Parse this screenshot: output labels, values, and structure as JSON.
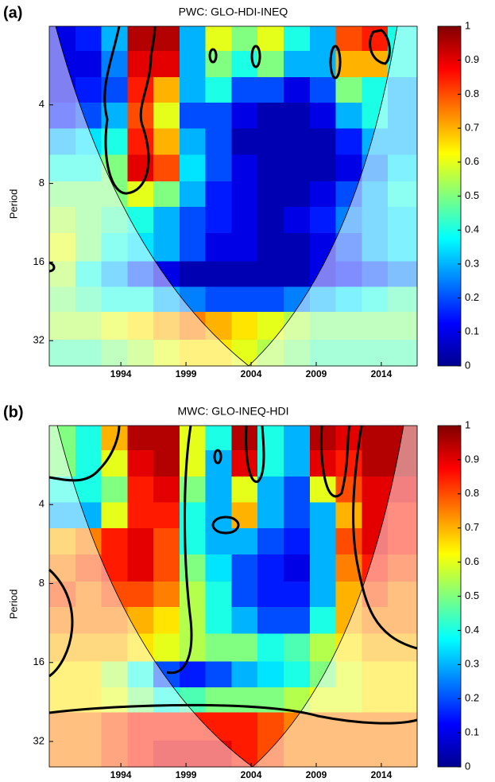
{
  "chart_data": [
    {
      "type": "heatmap",
      "panel_label": "(a)",
      "title": "PWC: GLO-HDI-INEQ",
      "ylabel": "Period",
      "x": [
        1989.5,
        1991.5,
        1993.5,
        1995.5,
        1997.5,
        1999.5,
        2001.5,
        2003.5,
        2005.5,
        2007.5,
        2009.5,
        2011.5,
        2013.5,
        2015.5
      ],
      "y": [
        2.2,
        2.8,
        3.5,
        4.4,
        5.5,
        7,
        8.8,
        11,
        14,
        18,
        22,
        28,
        36
      ],
      "z": [
        [
          0.1,
          0.15,
          0.3,
          0.95,
          0.95,
          0.3,
          0.6,
          0.5,
          0.6,
          0.4,
          0.3,
          0.8,
          0.85,
          0.4
        ],
        [
          0.1,
          0.1,
          0.25,
          0.9,
          0.9,
          0.3,
          0.5,
          0.4,
          0.5,
          0.3,
          0.3,
          0.7,
          0.7,
          0.4
        ],
        [
          0.1,
          0.15,
          0.2,
          0.85,
          0.7,
          0.3,
          0.4,
          0.2,
          0.2,
          0.1,
          0.2,
          0.5,
          0.4,
          0.3
        ],
        [
          0.15,
          0.2,
          0.3,
          0.8,
          0.6,
          0.2,
          0.2,
          0.1,
          0.05,
          0.05,
          0.1,
          0.3,
          0.4,
          0.3
        ],
        [
          0.3,
          0.35,
          0.4,
          0.85,
          0.7,
          0.3,
          0.2,
          0.05,
          0.05,
          0.05,
          0.05,
          0.15,
          0.3,
          0.3
        ],
        [
          0.4,
          0.4,
          0.5,
          0.9,
          0.8,
          0.35,
          0.2,
          0.1,
          0.05,
          0.05,
          0.05,
          0.1,
          0.25,
          0.35
        ],
        [
          0.5,
          0.5,
          0.5,
          0.6,
          0.5,
          0.3,
          0.15,
          0.1,
          0.05,
          0.05,
          0.1,
          0.2,
          0.3,
          0.4
        ],
        [
          0.55,
          0.5,
          0.45,
          0.4,
          0.3,
          0.2,
          0.15,
          0.1,
          0.05,
          0.1,
          0.15,
          0.25,
          0.3,
          0.35
        ],
        [
          0.6,
          0.5,
          0.4,
          0.35,
          0.3,
          0.2,
          0.1,
          0.1,
          0.05,
          0.05,
          0.1,
          0.2,
          0.3,
          0.35
        ],
        [
          0.55,
          0.4,
          0.3,
          0.2,
          0.1,
          0.05,
          0.05,
          0.05,
          0.05,
          0.05,
          0.1,
          0.15,
          0.2,
          0.25
        ],
        [
          0.5,
          0.45,
          0.4,
          0.4,
          0.3,
          0.25,
          0.2,
          0.2,
          0.2,
          0.25,
          0.3,
          0.35,
          0.4,
          0.45
        ],
        [
          0.55,
          0.55,
          0.6,
          0.65,
          0.7,
          0.75,
          0.7,
          0.65,
          0.6,
          0.55,
          0.5,
          0.5,
          0.5,
          0.5
        ],
        [
          0.45,
          0.45,
          0.5,
          0.55,
          0.6,
          0.65,
          0.65,
          0.6,
          0.55,
          0.5,
          0.45,
          0.45,
          0.45,
          0.45
        ]
      ],
      "xlim": [
        1988.5,
        2016.75
      ],
      "xticks": [
        1994,
        1999,
        2004,
        2009,
        2014
      ],
      "ylim": [
        2,
        40
      ],
      "yticks": [
        4,
        8,
        16,
        32
      ],
      "ylog": true,
      "yreversed": true,
      "colormap": "jet",
      "zlim": [
        0,
        1
      ],
      "zticks": [
        0,
        0.1,
        0.2,
        0.3,
        0.4,
        0.5,
        0.6,
        0.7,
        0.8,
        0.9,
        1
      ]
    },
    {
      "type": "heatmap",
      "panel_label": "(b)",
      "title": "MWC: GLO-INEQ-HDI",
      "ylabel": "Period",
      "x": [
        1989.5,
        1991.5,
        1993.5,
        1995.5,
        1997.5,
        1999.5,
        2001.5,
        2003.5,
        2005.5,
        2007.5,
        2009.5,
        2011.5,
        2013.5,
        2015.5
      ],
      "y": [
        2.2,
        2.8,
        3.5,
        4.4,
        5.5,
        7,
        8.8,
        11,
        14,
        18,
        22,
        28,
        36
      ],
      "z": [
        [
          0.5,
          0.4,
          0.7,
          0.95,
          0.95,
          0.6,
          0.4,
          0.95,
          0.4,
          0.3,
          0.95,
          0.9,
          0.95,
          0.95
        ],
        [
          0.5,
          0.4,
          0.6,
          0.9,
          0.95,
          0.6,
          0.3,
          0.9,
          0.4,
          0.3,
          0.9,
          0.85,
          0.95,
          0.95
        ],
        [
          0.4,
          0.4,
          0.5,
          0.85,
          0.9,
          0.5,
          0.3,
          0.6,
          0.3,
          0.2,
          0.6,
          0.8,
          0.9,
          0.9
        ],
        [
          0.3,
          0.3,
          0.6,
          0.85,
          0.85,
          0.4,
          0.3,
          0.7,
          0.3,
          0.2,
          0.3,
          0.7,
          0.9,
          0.85
        ],
        [
          0.7,
          0.75,
          0.85,
          0.9,
          0.8,
          0.4,
          0.3,
          0.3,
          0.2,
          0.15,
          0.3,
          0.8,
          0.9,
          0.85
        ],
        [
          0.75,
          0.8,
          0.85,
          0.9,
          0.8,
          0.5,
          0.35,
          0.2,
          0.15,
          0.1,
          0.3,
          0.75,
          0.85,
          0.8
        ],
        [
          0.8,
          0.75,
          0.8,
          0.8,
          0.75,
          0.55,
          0.4,
          0.2,
          0.15,
          0.15,
          0.3,
          0.7,
          0.8,
          0.75
        ],
        [
          0.75,
          0.75,
          0.75,
          0.7,
          0.65,
          0.55,
          0.4,
          0.3,
          0.2,
          0.2,
          0.4,
          0.7,
          0.75,
          0.75
        ],
        [
          0.7,
          0.7,
          0.7,
          0.65,
          0.6,
          0.55,
          0.5,
          0.5,
          0.4,
          0.45,
          0.55,
          0.65,
          0.7,
          0.7
        ],
        [
          0.65,
          0.65,
          0.55,
          0.4,
          0.2,
          0.15,
          0.2,
          0.3,
          0.35,
          0.4,
          0.5,
          0.6,
          0.65,
          0.65
        ],
        [
          0.65,
          0.65,
          0.6,
          0.5,
          0.4,
          0.45,
          0.5,
          0.5,
          0.5,
          0.55,
          0.6,
          0.6,
          0.65,
          0.65
        ],
        [
          0.75,
          0.75,
          0.8,
          0.85,
          0.85,
          0.85,
          0.85,
          0.85,
          0.8,
          0.75,
          0.75,
          0.75,
          0.75,
          0.75
        ],
        [
          0.75,
          0.75,
          0.8,
          0.85,
          0.9,
          0.9,
          0.9,
          0.85,
          0.8,
          0.75,
          0.75,
          0.75,
          0.75,
          0.75
        ]
      ],
      "xlim": [
        1988.5,
        2016.75
      ],
      "xticks": [
        1994,
        1999,
        2004,
        2009,
        2014
      ],
      "ylim": [
        2,
        40
      ],
      "yticks": [
        4,
        8,
        16,
        32
      ],
      "ylog": true,
      "yreversed": true,
      "colormap": "jet",
      "zlim": [
        0,
        1
      ],
      "zticks": [
        0,
        0.1,
        0.2,
        0.3,
        0.4,
        0.5,
        0.6,
        0.7,
        0.8,
        0.9,
        1
      ]
    }
  ]
}
